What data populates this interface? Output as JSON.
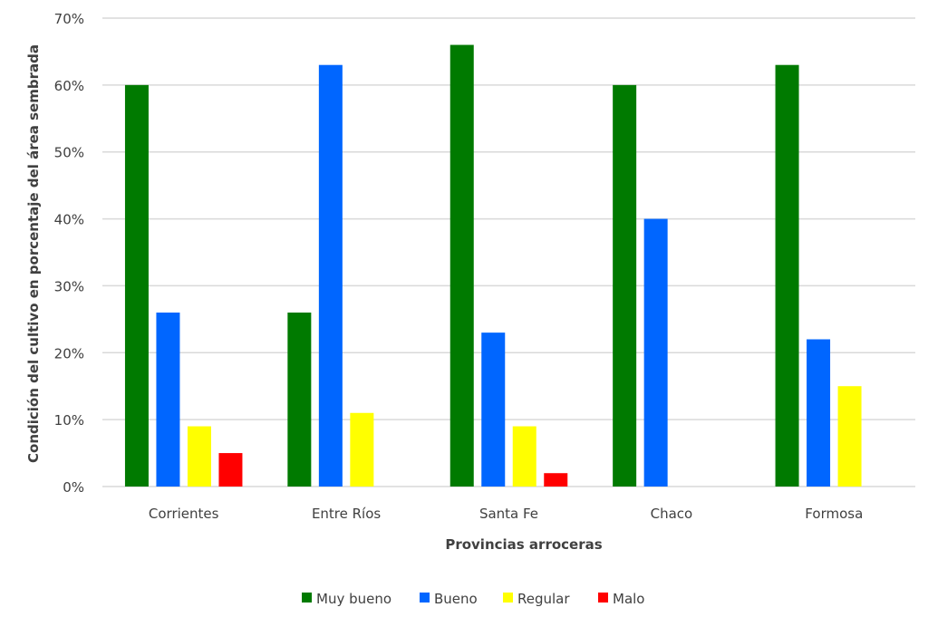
{
  "chart_data": {
    "type": "bar",
    "title": "",
    "xlabel": "Provincias arroceras",
    "ylabel": "Condición del cultivo en porcentaje del área sembrada",
    "ylim": [
      0,
      70
    ],
    "yticks": [
      "0%",
      "10%",
      "20%",
      "30%",
      "40%",
      "50%",
      "60%",
      "70%"
    ],
    "grid": true,
    "legend_position": "bottom",
    "categories": [
      "Corrientes",
      "Entre Ríos",
      "Santa Fe",
      "Chaco",
      "Formosa"
    ],
    "series": [
      {
        "name": "Muy bueno",
        "color": "#007A00",
        "values": [
          60,
          26,
          66,
          60,
          63
        ]
      },
      {
        "name": "Bueno",
        "color": "#0066FF",
        "values": [
          26,
          63,
          23,
          40,
          22
        ]
      },
      {
        "name": "Regular",
        "color": "#FFFF00",
        "values": [
          9,
          11,
          9,
          0,
          15
        ]
      },
      {
        "name": "Malo",
        "color": "#FF0000",
        "values": [
          5,
          0,
          2,
          0,
          0
        ]
      }
    ]
  }
}
